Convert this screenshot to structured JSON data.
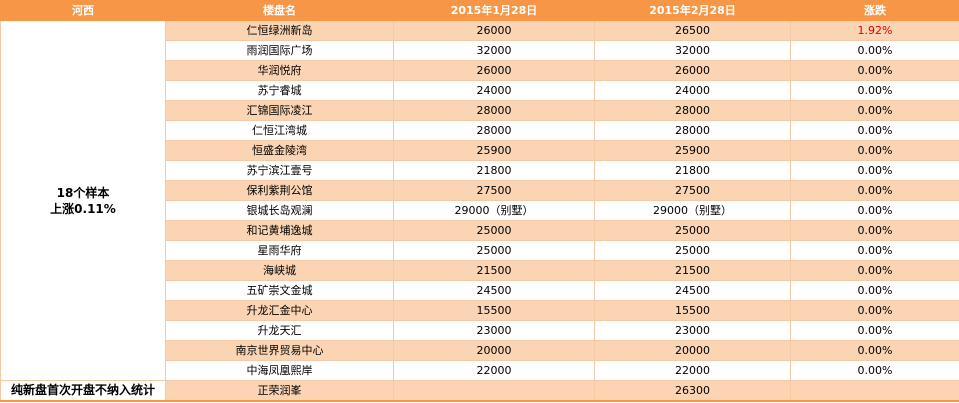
{
  "table": {
    "header": [
      "河西",
      "楼盘名",
      "2015年1月28日",
      "2015年2月28日",
      "涨跌"
    ],
    "summary": [
      "18个样本",
      "上涨0.11%"
    ],
    "rows": [
      [
        "仁恒绿洲新岛",
        "26000",
        "26500",
        "1.92%"
      ],
      [
        "雨润国际广场",
        "32000",
        "32000",
        "0.00%"
      ],
      [
        "华润悦府",
        "26000",
        "26000",
        "0.00%"
      ],
      [
        "苏宁睿城",
        "24000",
        "24000",
        "0.00%"
      ],
      [
        "汇锦国际凌江",
        "28000",
        "28000",
        "0.00%"
      ],
      [
        "仁恒江湾城",
        "28000",
        "28000",
        "0.00%"
      ],
      [
        "恒盛金陵湾",
        "25900",
        "25900",
        "0.00%"
      ],
      [
        "苏宁滨江壹号",
        "21800",
        "21800",
        "0.00%"
      ],
      [
        "保利紫荆公馆",
        "27500",
        "27500",
        "0.00%"
      ],
      [
        "银城长岛观澜",
        "29000（别墅）",
        "29000（别墅）",
        "0.00%"
      ],
      [
        "和记黄埔逸城",
        "25000",
        "25000",
        "0.00%"
      ],
      [
        "星雨华府",
        "25000",
        "25000",
        "0.00%"
      ],
      [
        "海峡城",
        "21500",
        "21500",
        "0.00%"
      ],
      [
        "五矿崇文金城",
        "24500",
        "24500",
        "0.00%"
      ],
      [
        "升龙汇金中心",
        "15500",
        "15500",
        "0.00%"
      ],
      [
        "升龙天汇",
        "23000",
        "23000",
        "0.00%"
      ],
      [
        "南京世界贸易中心",
        "20000",
        "20000",
        "0.00%"
      ],
      [
        "中海凤凰熙岸",
        "22000",
        "22000",
        "0.00%"
      ]
    ],
    "footer": {
      "label": "纯新盘首次开盘不纳入统计",
      "name": "正荣润峯",
      "feb": "26300"
    }
  }
}
